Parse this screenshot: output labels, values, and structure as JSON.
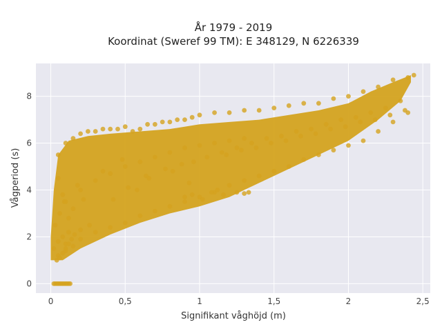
{
  "chart_data": {
    "type": "scatter",
    "title": "År 1979 - 2019",
    "subtitle": "Koordinat (Sweref 99 TM): E 348129, N 6226339",
    "xlabel": "Signifikant våghöjd (m)",
    "ylabel": "Vågperiod (s)",
    "xlim": [
      -0.1,
      2.55
    ],
    "ylim": [
      -0.4,
      9.4
    ],
    "x_ticks": [
      0,
      0.5,
      1,
      1.5,
      2,
      2.5
    ],
    "x_tick_labels": [
      "0",
      "0,5",
      "1",
      "1,5",
      "2",
      "2,5"
    ],
    "y_ticks": [
      0,
      2,
      4,
      6,
      8
    ],
    "y_tick_labels": [
      "0",
      "2",
      "4",
      "6",
      "8"
    ],
    "grid": true,
    "legend": "none",
    "marker_color": "#D4A31F",
    "background_color": "#E8E8F0",
    "series": [
      {
        "x": [
          0.02,
          0.05,
          0.08,
          0.1,
          0.12,
          0.03,
          0.06,
          0.09,
          0.11,
          0.04,
          0.07,
          0.13,
          0.02,
          0.05,
          0.08,
          0.1,
          0.03,
          0.06,
          0.09,
          0.12,
          0.05,
          0.1,
          0.15,
          0.2,
          0.25,
          0.3,
          0.35,
          0.4,
          0.45,
          0.5,
          0.55,
          0.6,
          0.65,
          0.7,
          0.75,
          0.8,
          0.85,
          0.9,
          0.95,
          1.0,
          1.1,
          1.2,
          1.3,
          1.4,
          1.5,
          1.6,
          1.7,
          1.8,
          1.9,
          2.0,
          2.1,
          2.2,
          2.3,
          2.4,
          0.05,
          0.1,
          0.15,
          0.2,
          0.3,
          0.4,
          0.5,
          0.6,
          0.7,
          0.8,
          0.9,
          1.0,
          1.1,
          1.2,
          1.3,
          1.4,
          1.5,
          1.6,
          1.7,
          1.8,
          1.9,
          2.0,
          2.1,
          2.2,
          2.3,
          2.4,
          2.44,
          0.1,
          0.2,
          0.3,
          0.4,
          0.5,
          0.6,
          0.7,
          0.8,
          0.9,
          1.0,
          1.1,
          1.2,
          1.3,
          0.05,
          0.08,
          0.12,
          0.15,
          0.18,
          0.22,
          0.35,
          0.48,
          0.52,
          0.64,
          0.77,
          0.88,
          0.93,
          1.05,
          1.15,
          1.25,
          1.35,
          1.45,
          1.55,
          1.65,
          1.75,
          1.85,
          1.95,
          2.05,
          2.15,
          2.25,
          2.35,
          0.04,
          0.06,
          0.08,
          0.1,
          0.12,
          0.14,
          0.16,
          0.2,
          0.26,
          0.42,
          0.58,
          0.66,
          0.82,
          0.96,
          1.18,
          1.28,
          1.38,
          1.48,
          1.58,
          1.68,
          1.78,
          1.88,
          1.98,
          2.08,
          2.18,
          2.28,
          2.38,
          0.9,
          0.95,
          1.02,
          1.08,
          1.12,
          1.16,
          1.25,
          1.3,
          1.33
        ],
        "y": [
          0,
          0,
          0,
          0,
          0,
          0,
          0,
          0,
          0,
          0,
          0,
          0,
          1.5,
          1.8,
          2.0,
          1.7,
          2.5,
          3.0,
          3.5,
          2.2,
          5.5,
          6.0,
          6.2,
          6.4,
          6.5,
          6.5,
          6.6,
          6.6,
          6.6,
          6.7,
          6.5,
          6.6,
          6.8,
          6.8,
          6.9,
          6.9,
          7.0,
          7.0,
          7.1,
          7.2,
          7.3,
          7.3,
          7.4,
          7.4,
          7.5,
          7.6,
          7.7,
          7.7,
          7.9,
          8.0,
          8.2,
          8.4,
          8.7,
          8.8,
          1.2,
          1.4,
          1.6,
          1.9,
          2.2,
          2.4,
          2.6,
          2.9,
          3.1,
          3.3,
          3.5,
          3.7,
          3.9,
          4.2,
          4.4,
          4.6,
          4.8,
          5.0,
          5.3,
          5.5,
          5.7,
          5.9,
          6.1,
          6.5,
          6.9,
          7.3,
          8.9,
          3.5,
          4.0,
          4.4,
          4.7,
          5.0,
          5.2,
          5.4,
          5.6,
          5.8,
          5.9,
          6.0,
          6.1,
          6.2,
          4.5,
          3.8,
          2.8,
          3.2,
          4.2,
          3.6,
          4.8,
          5.3,
          4.1,
          4.6,
          4.9,
          5.1,
          4.3,
          5.4,
          5.6,
          5.8,
          6.0,
          6.2,
          6.3,
          6.5,
          6.6,
          6.8,
          7.0,
          7.1,
          7.3,
          7.5,
          7.8,
          1.0,
          1.1,
          1.3,
          1.5,
          1.7,
          1.9,
          2.1,
          2.3,
          2.5,
          3.6,
          4.0,
          4.5,
          4.8,
          5.2,
          5.5,
          5.7,
          5.8,
          6.0,
          6.1,
          6.3,
          6.4,
          6.6,
          6.7,
          6.9,
          7.0,
          7.2,
          7.4,
          3.7,
          3.8,
          3.6,
          3.9,
          4.0,
          3.8,
          3.9,
          3.85,
          3.9
        ]
      }
    ]
  }
}
